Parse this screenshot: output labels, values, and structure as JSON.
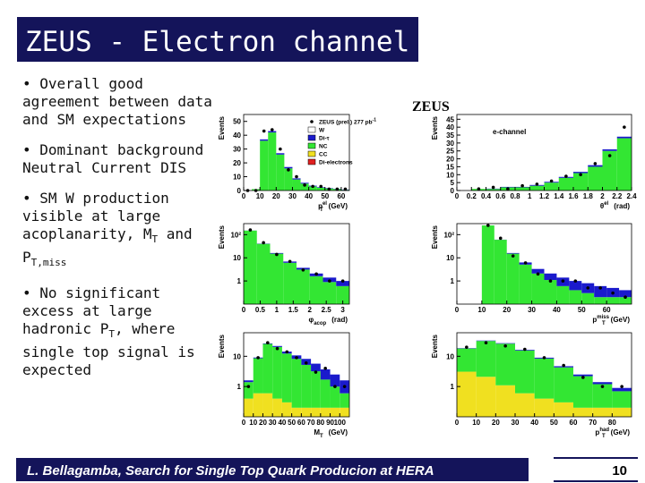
{
  "header": {
    "title": "ZEUS - Electron channel"
  },
  "bullets": [
    [
      "• Overall good agreement between data and SM expectations"
    ],
    [
      "• Dominant background Neutral Current DIS"
    ],
    [
      "• SM W production visible at large acoplanarity, M",
      "T",
      " and P",
      "T,miss"
    ],
    [
      "• No significant excess at large hadronic P",
      "T",
      ", where single top signal is expected"
    ]
  ],
  "figure": {
    "label": "ZEUS",
    "channel": "e-channel",
    "legend": [
      {
        "text": "ZEUS (prel.) 277 pb",
        "sup": "-1",
        "color": "#000000"
      },
      {
        "text": "W",
        "color": "#ffffff"
      },
      {
        "text": "Di-τ",
        "color": "#1a1acc"
      },
      {
        "text": "NC",
        "color": "#33e633"
      },
      {
        "text": "CC",
        "color": "#f0e020"
      },
      {
        "text": "Di-electrons",
        "color": "#e02020"
      }
    ],
    "panels": [
      {
        "ylabel": "Events",
        "xlabel": {
          "main": "p",
          "sub": "T",
          "sup": "el",
          "unit": "(GeV)"
        },
        "log": false,
        "xlim": [
          0,
          65
        ],
        "ylim": [
          0,
          55
        ],
        "xticks": [
          0,
          10,
          20,
          30,
          40,
          50,
          60
        ],
        "yticks": [
          0,
          10,
          20,
          30,
          40,
          50
        ],
        "bins": [
          0,
          5,
          10,
          15,
          20,
          25,
          30,
          35,
          40,
          45,
          50,
          55,
          60,
          65
        ],
        "series": [
          {
            "color": "#33e633",
            "values": [
              0,
              1,
              36,
              42,
              26,
              16,
              8,
              5,
              3,
              2,
              1.5,
              1,
              0.5
            ]
          },
          {
            "color": "#1a1acc",
            "values": [
              0,
              0,
              1,
              1,
              1,
              1,
              0.8,
              0.6,
              0.5,
              0.4,
              0.3,
              0.2,
              0.2
            ]
          }
        ],
        "data": [
          0,
          0,
          43,
          44,
          30,
          15,
          10,
          4,
          3,
          3,
          1,
          1,
          1
        ]
      },
      {
        "ylabel": "Events",
        "xlabel": {
          "main": "θ",
          "sup": "el",
          "unit": "(rad)"
        },
        "log": false,
        "xlim": [
          0,
          2.4
        ],
        "ylim": [
          0,
          48
        ],
        "xticks": [
          0,
          0.2,
          0.4,
          0.6,
          0.8,
          1,
          1.2,
          1.4,
          1.6,
          1.8,
          2,
          2.2,
          2.4
        ],
        "yticks": [
          0,
          5,
          10,
          15,
          20,
          25,
          30,
          35,
          40,
          45
        ],
        "bins": [
          0.2,
          0.4,
          0.6,
          0.8,
          1,
          1.2,
          1.4,
          1.6,
          1.8,
          2,
          2.2,
          2.4
        ],
        "series": [
          {
            "color": "#33e633",
            "values": [
              1,
              1,
              2,
              2,
              3,
              5,
              8,
              11,
              15,
              25,
              33
            ]
          },
          {
            "color": "#1a1acc",
            "values": [
              0,
              0.2,
              0.3,
              0.3,
              0.5,
              0.5,
              0.6,
              0.8,
              1,
              1,
              1
            ]
          }
        ],
        "data": [
          1,
          2,
          1,
          3,
          4,
          6,
          9,
          10,
          17,
          22,
          40
        ]
      },
      {
        "ylabel": "Events",
        "xlabel": {
          "main": "φ",
          "sub": "acop",
          "unit": "(rad)"
        },
        "log": true,
        "xlim": [
          0,
          3.2
        ],
        "ylim": [
          0.1,
          300
        ],
        "xticks": [
          0,
          0.5,
          1,
          1.5,
          2,
          2.5,
          3
        ],
        "yticks": [
          {
            "value": 100,
            "label": "10²"
          },
          10,
          1
        ],
        "bins": [
          0,
          0.4,
          0.8,
          1.2,
          1.6,
          2,
          2.4,
          2.8,
          3.2
        ],
        "series": [
          {
            "color": "#33e633",
            "values": [
              150,
              40,
              15,
              6,
              3,
              1.5,
              0.8,
              0.5
            ]
          },
          {
            "color": "#1a1acc",
            "values": [
              1,
              1,
              1,
              0.8,
              0.6,
              0.5,
              0.5,
              0.4
            ]
          }
        ],
        "data": [
          160,
          45,
          14,
          7,
          3,
          2,
          1,
          1
        ]
      },
      {
        "ylabel": "Events",
        "xlabel": {
          "main": "p",
          "sub": "T",
          "sup": "miss",
          "unit": "(GeV)"
        },
        "log": true,
        "xlim": [
          0,
          70
        ],
        "ylim": [
          0.1,
          300
        ],
        "xticks": [
          0,
          10,
          20,
          30,
          40,
          50,
          60
        ],
        "yticks": [
          {
            "value": 100,
            "label": "10²"
          },
          10,
          1
        ],
        "bins": [
          10,
          15,
          20,
          25,
          30,
          35,
          40,
          45,
          50,
          55,
          60,
          65,
          70
        ],
        "series": [
          {
            "color": "#33e633",
            "values": [
              250,
              60,
              15,
              5,
              2,
              1,
              0.5,
              0.3,
              0.2,
              0.1,
              0.1,
              0.1
            ]
          },
          {
            "color": "#1a1acc",
            "values": [
              0.5,
              0.8,
              1,
              1.2,
              1.2,
              1,
              0.8,
              0.6,
              0.5,
              0.4,
              0.3,
              0.2
            ]
          }
        ],
        "data": [
          250,
          70,
          12,
          6,
          2,
          1,
          1,
          1,
          0.5,
          0.5,
          0.3,
          0.2
        ]
      },
      {
        "ylabel": "Events",
        "xlabel": {
          "main": "M",
          "sub": "T",
          "unit": "(GeV)"
        },
        "log": true,
        "xlim": [
          0,
          110
        ],
        "ylim": [
          0.1,
          60
        ],
        "xticks": [
          0,
          10,
          20,
          30,
          40,
          50,
          60,
          70,
          80,
          90,
          100
        ],
        "yticks": [
          10,
          1
        ],
        "bins": [
          0,
          10,
          20,
          30,
          40,
          50,
          60,
          70,
          80,
          90,
          100,
          110
        ],
        "series": [
          {
            "color": "#f0e020",
            "values": [
              0.3,
              0.5,
              0.5,
              0.3,
              0.2,
              0.1,
              0.1,
              0.1,
              0.1,
              0.1,
              0.1
            ]
          },
          {
            "color": "#33e633",
            "values": [
              1,
              8,
              25,
              20,
              12,
              8,
              5,
              3,
              1.5,
              0.8,
              0.4
            ]
          },
          {
            "color": "#1a1acc",
            "values": [
              0.2,
              0.5,
              1,
              1.5,
              2,
              2.5,
              3,
              2.5,
              2,
              1.5,
              1
            ]
          }
        ],
        "data": [
          1,
          9,
          28,
          18,
          14,
          9,
          6,
          3,
          4,
          1,
          1
        ]
      },
      {
        "ylabel": "Events",
        "xlabel": {
          "main": "p",
          "sub": "T",
          "sup": "had",
          "unit": "(GeV)"
        },
        "log": true,
        "xlim": [
          0,
          90
        ],
        "ylim": [
          0.1,
          60
        ],
        "xticks": [
          0,
          10,
          20,
          30,
          40,
          50,
          60,
          70,
          80
        ],
        "yticks": [
          10,
          1
        ],
        "bins": [
          0,
          10,
          20,
          30,
          40,
          50,
          60,
          70,
          80,
          90
        ],
        "series": [
          {
            "color": "#f0e020",
            "values": [
              3,
              2,
              1,
              0.5,
              0.3,
              0.2,
              0.1,
              0.1,
              0.1
            ]
          },
          {
            "color": "#33e633",
            "values": [
              15,
              30,
              25,
              15,
              8,
              4,
              2,
              1,
              0.5
            ]
          },
          {
            "color": "#1a1acc",
            "values": [
              0.5,
              1,
              1,
              0.8,
              0.6,
              0.4,
              0.3,
              0.2,
              0.2
            ]
          }
        ],
        "data": [
          20,
          28,
          22,
          17,
          9,
          5,
          2,
          1,
          1
        ]
      }
    ]
  },
  "footer": {
    "text": "L. Bellagamba, Search for Single Top Quark Producion at HERA",
    "page": "10"
  }
}
